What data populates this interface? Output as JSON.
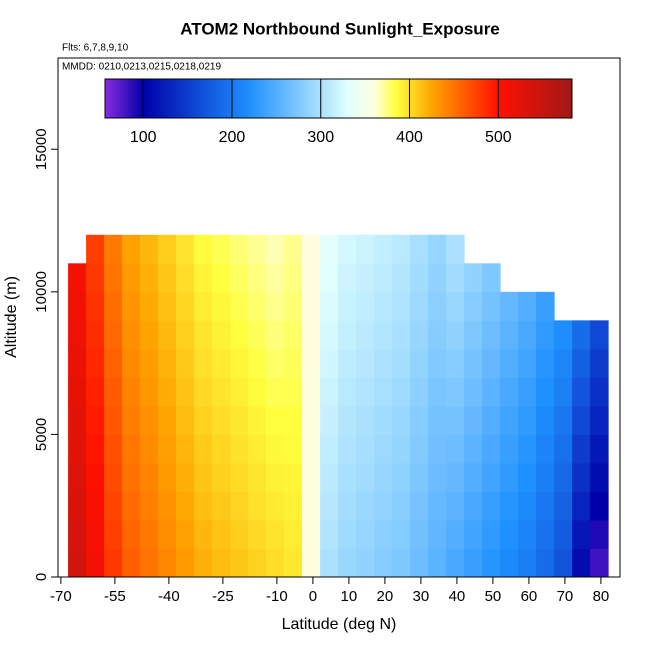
{
  "chart_data": {
    "type": "heatmap",
    "title": "ATOM2 Northbound Sunlight_Exposure",
    "annotations": [
      "Flts: 6,7,8,9,10",
      "MMDD: 0210,0213,0215,0218,0219"
    ],
    "xlabel": "Latitude (deg N)",
    "ylabel": "Altitude (m)",
    "xlim": [
      -70.8,
      85.3
    ],
    "ylim": [
      0,
      18200
    ],
    "xticks": [
      -70,
      -55,
      -40,
      -25,
      -10,
      0,
      10,
      20,
      30,
      40,
      50,
      60,
      70,
      80
    ],
    "yticks": [
      0,
      5000,
      10000,
      15000
    ],
    "x_edges": [
      -68,
      -63,
      -58,
      -53,
      -48,
      -43,
      -38,
      -33,
      -28,
      -23,
      -18,
      -13,
      -8,
      -3,
      2,
      7,
      12,
      17,
      22,
      27,
      32,
      37,
      42,
      47,
      52,
      57,
      62,
      67,
      72,
      77,
      82
    ],
    "y_edges": [
      0,
      1000,
      2000,
      3000,
      4000,
      5000,
      6000,
      7000,
      8000,
      9000,
      10000,
      11000,
      12000
    ],
    "z": [
      [
        540,
        510,
        480,
        460,
        450,
        440,
        430,
        420,
        415,
        410,
        405,
        400,
        395,
        360,
        300,
        290,
        285,
        280,
        275,
        265,
        255,
        245,
        235,
        225,
        215,
        205,
        190,
        170,
        110,
        80
      ],
      [
        537,
        507,
        477,
        457,
        447,
        437,
        427,
        417,
        412,
        407,
        402,
        397,
        393,
        360,
        303,
        293,
        288,
        283,
        278,
        268,
        258,
        250,
        240,
        230,
        220,
        210,
        195,
        176,
        120,
        90
      ],
      [
        534,
        504,
        474,
        454,
        444,
        434,
        424,
        414,
        409,
        404,
        399,
        394,
        391,
        360,
        306,
        296,
        291,
        286,
        281,
        271,
        261,
        255,
        245,
        235,
        225,
        215,
        200,
        182,
        130,
        100
      ],
      [
        531,
        501,
        471,
        451,
        441,
        431,
        421,
        411,
        406,
        401,
        396,
        391,
        389,
        360,
        309,
        299,
        294,
        289,
        284,
        274,
        264,
        260,
        250,
        240,
        230,
        220,
        205,
        188,
        140,
        110
      ],
      [
        528,
        498,
        468,
        448,
        438,
        428,
        418,
        408,
        403,
        398,
        393,
        388,
        387,
        360,
        312,
        302,
        297,
        292,
        287,
        277,
        267,
        265,
        255,
        245,
        235,
        225,
        210,
        194,
        150,
        120
      ],
      [
        525,
        495,
        465,
        445,
        435,
        425,
        415,
        405,
        400,
        395,
        390,
        385,
        385,
        360,
        315,
        305,
        300,
        295,
        290,
        280,
        270,
        270,
        260,
        250,
        240,
        230,
        215,
        200,
        160,
        130
      ],
      [
        522,
        492,
        462,
        442,
        432,
        422,
        412,
        402,
        397,
        392,
        387,
        382,
        383,
        360,
        318,
        308,
        303,
        298,
        293,
        283,
        273,
        275,
        265,
        255,
        245,
        235,
        220,
        206,
        170,
        140
      ],
      [
        519,
        489,
        459,
        439,
        429,
        419,
        409,
        399,
        394,
        389,
        384,
        379,
        381,
        360,
        321,
        311,
        306,
        301,
        296,
        286,
        276,
        280,
        270,
        260,
        250,
        240,
        225,
        212,
        180,
        150
      ],
      [
        516,
        486,
        456,
        436,
        426,
        416,
        406,
        396,
        391,
        386,
        381,
        376,
        379,
        360,
        324,
        314,
        309,
        304,
        299,
        289,
        279,
        285,
        275,
        265,
        255,
        245,
        230,
        218,
        190,
        160
      ],
      [
        513,
        483,
        453,
        433,
        423,
        413,
        403,
        393,
        388,
        383,
        378,
        373,
        377,
        360,
        327,
        317,
        312,
        307,
        302,
        292,
        282,
        290,
        280,
        270,
        260,
        250,
        235,
        null,
        null,
        null
      ],
      [
        510,
        480,
        450,
        430,
        420,
        410,
        400,
        390,
        385,
        380,
        375,
        370,
        375,
        360,
        330,
        320,
        315,
        310,
        305,
        295,
        285,
        295,
        285,
        275,
        null,
        null,
        null,
        null,
        null,
        null
      ],
      [
        null,
        477,
        447,
        427,
        417,
        407,
        397,
        387,
        382,
        377,
        372,
        367,
        373,
        360,
        333,
        323,
        318,
        313,
        308,
        298,
        288,
        300,
        null,
        null,
        null,
        null,
        null,
        null,
        null,
        null
      ]
    ],
    "colorbar_lim": [
      57,
      583
    ],
    "colorbar_ticks": [
      100,
      200,
      300,
      400,
      500
    ],
    "colorscale": [
      {
        "value": 57,
        "color": "#8a2be2"
      },
      {
        "value": 100,
        "color": "#0000a8"
      },
      {
        "value": 220,
        "color": "#1e90ff"
      },
      {
        "value": 330,
        "color": "#e0ffff"
      },
      {
        "value": 360,
        "color": "#ffffe0"
      },
      {
        "value": 385,
        "color": "#ffff40"
      },
      {
        "value": 425,
        "color": "#ffa500"
      },
      {
        "value": 500,
        "color": "#ff1000"
      },
      {
        "value": 583,
        "color": "#a01818"
      }
    ]
  }
}
